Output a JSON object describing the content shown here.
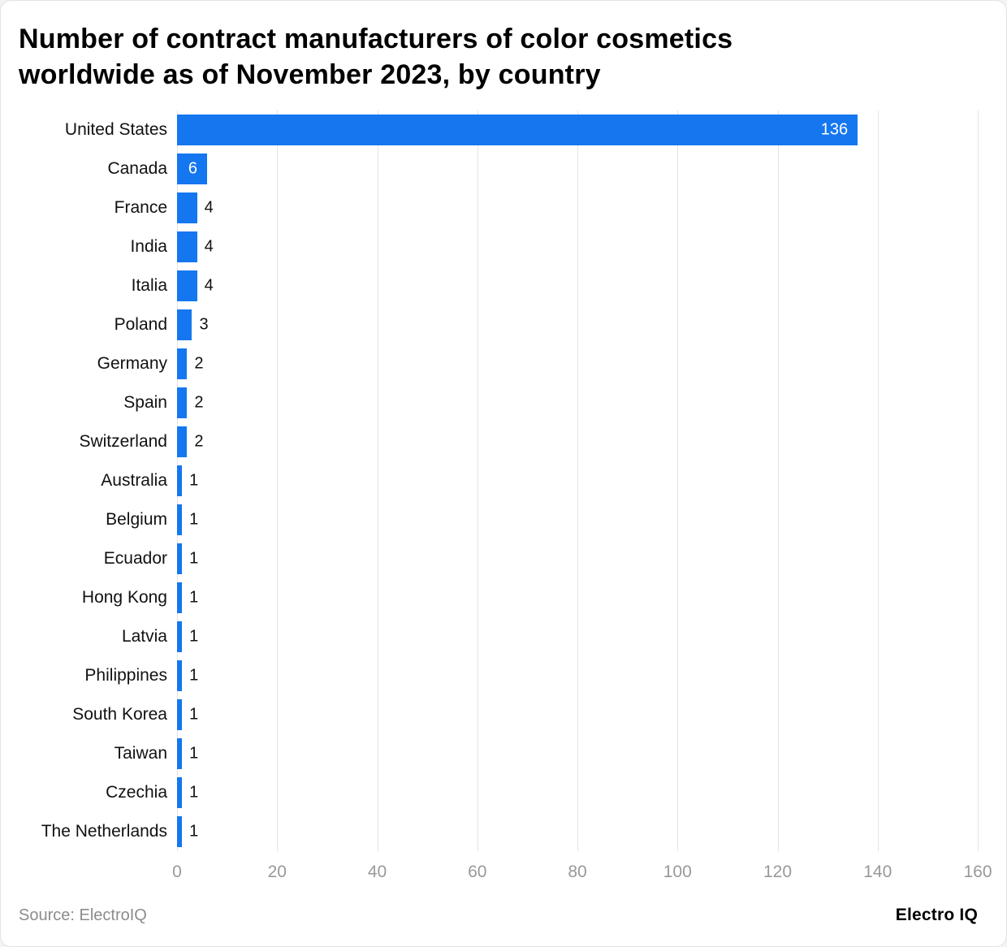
{
  "chart_data": {
    "type": "bar",
    "orientation": "horizontal",
    "title": "Number of contract manufacturers of color cosmetics worldwide as of November 2023, by country",
    "categories": [
      "United States",
      "Canada",
      "France",
      "India",
      "Italia",
      "Poland",
      "Germany",
      "Spain",
      "Switzerland",
      "Australia",
      "Belgium",
      "Ecuador",
      "Hong Kong",
      "Latvia",
      "Philippines",
      "South Korea",
      "Taiwan",
      "Czechia",
      "The Netherlands"
    ],
    "values": [
      136,
      6,
      4,
      4,
      4,
      3,
      2,
      2,
      2,
      1,
      1,
      1,
      1,
      1,
      1,
      1,
      1,
      1,
      1
    ],
    "xlabel": "",
    "ylabel": "",
    "xlim": [
      0,
      160
    ],
    "x_ticks": [
      0,
      20,
      40,
      60,
      80,
      100,
      120,
      140,
      160
    ],
    "grid": true,
    "legend": false,
    "bar_color": "#1577F0",
    "gridline_color": "#e4e4e4",
    "tick_label_color": "#999999",
    "value_label_inside_color": "#ffffff",
    "value_label_outside_color": "#111111"
  },
  "footer": {
    "source": "Source: ElectroIQ",
    "brand": "Electro IQ"
  }
}
